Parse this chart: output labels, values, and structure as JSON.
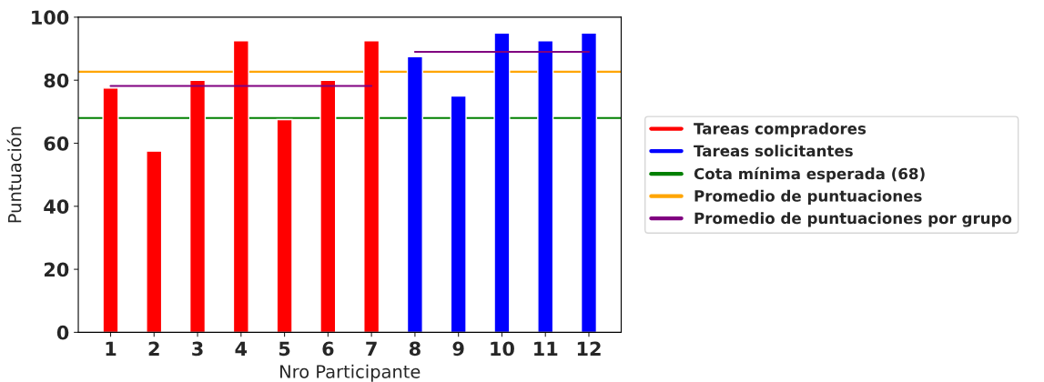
{
  "chart_data": {
    "type": "bar",
    "xlabel": "Nro Participante",
    "ylabel": "Puntuación",
    "categories": [
      "1",
      "2",
      "3",
      "4",
      "5",
      "6",
      "7",
      "8",
      "9",
      "10",
      "11",
      "12"
    ],
    "series": [
      {
        "name": "Tareas compradores",
        "color": "#ff0000",
        "values": [
          77.5,
          57.5,
          80,
          92.5,
          67.5,
          80,
          92.5,
          null,
          null,
          null,
          null,
          null
        ]
      },
      {
        "name": "Tareas solicitantes",
        "color": "#0000ff",
        "values": [
          null,
          null,
          null,
          null,
          null,
          null,
          null,
          87.5,
          75,
          95,
          92.5,
          95
        ]
      },
      {
        "name": "Promedio de puntuaciones por grupo",
        "type": "line",
        "color": "#800080",
        "values": [
          78.2,
          78.2,
          78.2,
          78.2,
          78.2,
          78.2,
          78.2,
          null,
          null,
          null,
          null,
          null
        ]
      },
      {
        "type": "line",
        "color": "#800080",
        "values": [
          null,
          null,
          null,
          null,
          null,
          null,
          null,
          89,
          89,
          89,
          89,
          89
        ]
      }
    ],
    "ref_lines": [
      {
        "axis": "y",
        "value": 68,
        "label": "Cota mínima esperada (68)",
        "color": "#008000"
      },
      {
        "axis": "y",
        "value": 82.7,
        "label": "Promedio de puntuaciones",
        "color": "#ffa500"
      }
    ],
    "ylim": [
      0,
      100
    ],
    "yticks": [
      0,
      20,
      40,
      60,
      80,
      100
    ],
    "legend": "right",
    "grid": false
  }
}
